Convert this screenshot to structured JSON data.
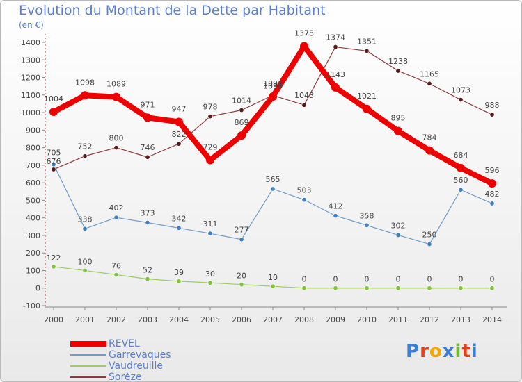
{
  "title": "Evolution du Montant de la Dette par Habitant",
  "unit": "(en €)",
  "logo": {
    "text": "Proxiti",
    "colors": [
      "#3a7fd5",
      "#e0401a",
      "#f0a800",
      "#3a7fd5",
      "#6dbb2a",
      "#e0401a",
      "#3a7fd5"
    ]
  },
  "chart_data": {
    "type": "line",
    "x": [
      "2000",
      "2001",
      "2002",
      "2003",
      "2004",
      "2005",
      "2006",
      "2007",
      "2008",
      "2009",
      "2010",
      "2011",
      "2012",
      "2013",
      "2014"
    ],
    "ylim": [
      -100,
      1400
    ],
    "yticks": [
      -100,
      0,
      100,
      200,
      300,
      400,
      500,
      600,
      700,
      800,
      900,
      1000,
      1100,
      1200,
      1300,
      1400
    ],
    "grid": false,
    "legend": "bottom-left",
    "series": [
      {
        "name": "REVEL",
        "color": "#ee0000",
        "values": [
          1004,
          1098,
          1089,
          971,
          947,
          729,
          869,
          1091,
          1378,
          1143,
          1021,
          895,
          784,
          684,
          596
        ]
      },
      {
        "name": "Garrevaques",
        "color": "#6f9ccb",
        "values": [
          705,
          338,
          402,
          373,
          342,
          311,
          277,
          565,
          503,
          412,
          358,
          302,
          250,
          560,
          482
        ]
      },
      {
        "name": "Vaudreuille",
        "color": "#9acd66",
        "values": [
          122,
          100,
          76,
          52,
          39,
          30,
          20,
          10,
          0,
          0,
          0,
          0,
          0,
          0,
          0
        ]
      },
      {
        "name": "Sorèze",
        "color": "#8b3a3a",
        "values": [
          676,
          752,
          800,
          746,
          822,
          978,
          1014,
          1098,
          1043,
          1374,
          1351,
          1238,
          1165,
          1073,
          988
        ]
      }
    ],
    "data_labels": {
      "REVEL": [
        "1004",
        "1098",
        "1089",
        "971",
        "947",
        "729",
        "869",
        "1091",
        "1378",
        "1143",
        "1021",
        "895",
        "784",
        "684",
        "596"
      ],
      "Garrevaques": [
        "705",
        "338",
        "402",
        "373",
        "342",
        "311",
        "277",
        "565",
        "503",
        "412",
        "358",
        "302",
        "250",
        "560",
        "482"
      ],
      "Vaudreuille": [
        "122",
        "100",
        "76",
        "52",
        "39",
        "30",
        "20",
        "10",
        "0",
        "0",
        "0",
        "0",
        "0",
        "0",
        "0"
      ],
      "Sorèze": [
        "676",
        "752",
        "800",
        "746",
        "822",
        "978",
        "1014",
        "1098",
        "1043",
        "1374",
        "1351",
        "1238",
        "1165",
        "1073",
        "988"
      ]
    }
  }
}
